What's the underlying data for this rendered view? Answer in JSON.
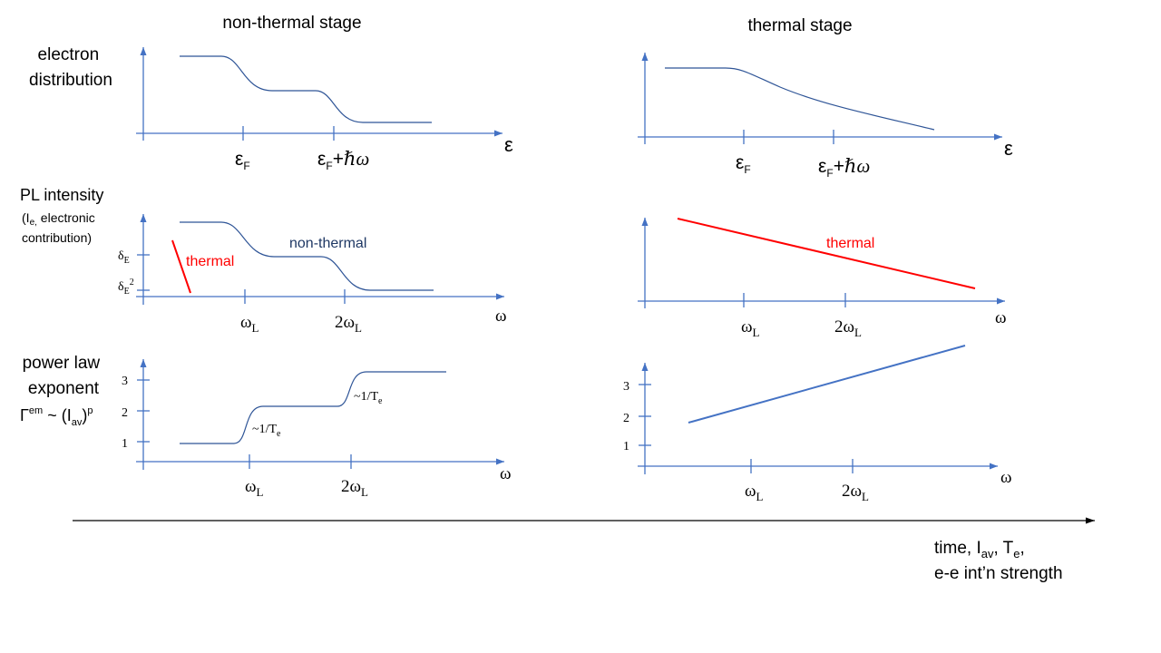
{
  "columns": {
    "left_title": "non-thermal stage",
    "right_title": "thermal stage"
  },
  "rows": {
    "electron_distribution": [
      "electron",
      "distribution"
    ],
    "pl_intensity": {
      "title": "PL intensity",
      "sub1_a": "(I",
      "sub1_sub": "e,",
      "sub1_b": " electronic",
      "sub2": "contribution)"
    },
    "power_law": {
      "line1": "power law",
      "line2": "exponent",
      "formula_gamma": "Γ",
      "formula_sup": "em",
      "formula_mid": " ~ (I",
      "formula_sub": "av",
      "formula_close": ")",
      "formula_p": "p"
    }
  },
  "axes": {
    "energy_symbol": "ε",
    "omega_symbol": "ω",
    "eps": "ε",
    "F_sub": "F",
    "eps_plus": "+",
    "hbar_omega": "ℏω",
    "two": "2",
    "L_sub": "L",
    "delta": "δ",
    "E_sub": "E",
    "sq": "2",
    "tick_1": "1",
    "tick_2": "2",
    "tick_3": "3"
  },
  "curve_labels": {
    "non_thermal": "non-thermal",
    "thermal_left": "thermal",
    "thermal_right": "thermal",
    "inv_T_prefix": "~1/T",
    "inv_T_sub": "e"
  },
  "timeline": {
    "line1_a": "time, I",
    "line1_sub": "av",
    "line1_b": ", T",
    "line1_sub2": "e",
    "line1_c": ",",
    "line2": "e-e int’n strength"
  },
  "colors": {
    "axis": "#4472c4",
    "curve": "#2f5597",
    "thermal": "#ff0000",
    "label_dark": "#1f3864",
    "power_line_right": "#4472c4"
  }
}
